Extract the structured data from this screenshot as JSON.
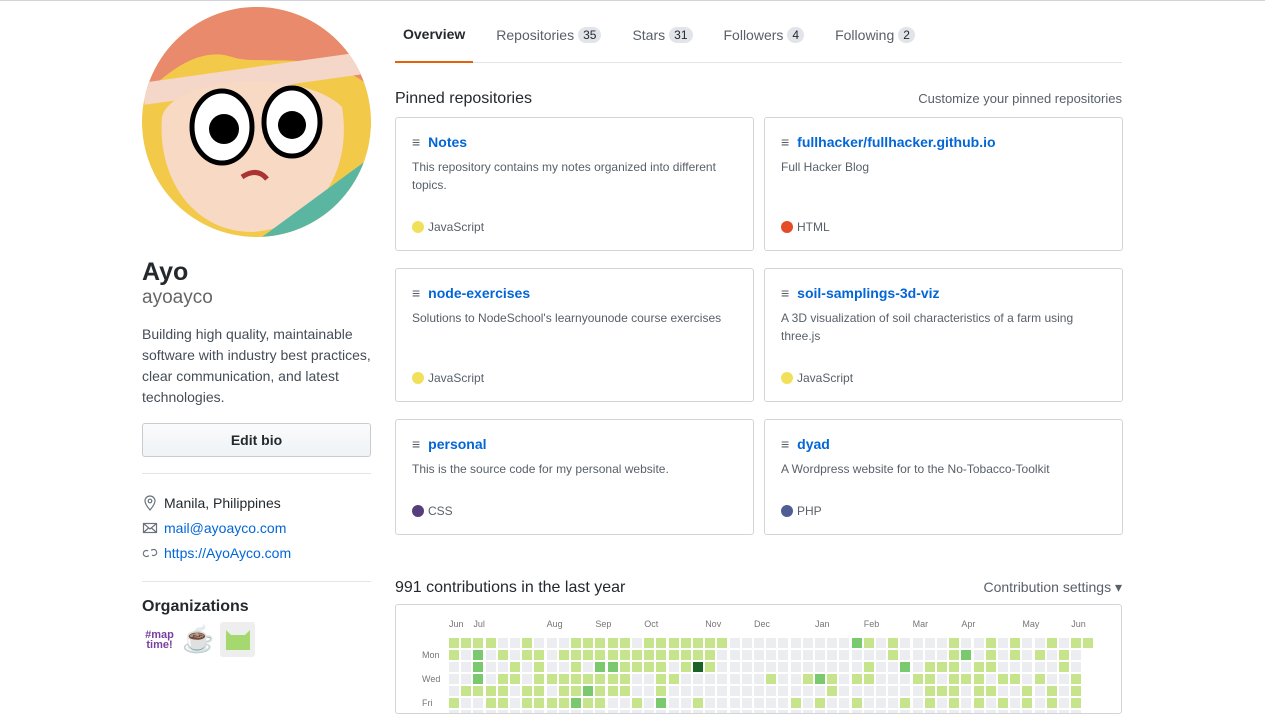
{
  "profile": {
    "name": "Ayo",
    "login": "ayoayco",
    "bio": "Building high quality, maintainable software with industry best practices, clear communication, and latest technologies.",
    "edit_bio": "Edit bio",
    "location": "Manila, Philippines",
    "email": "mail@ayoayco.com",
    "website": "https://AyoAyco.com",
    "organizations_title": "Organizations",
    "organizations": [
      {
        "name": "maptime",
        "icon": "maptime-logo"
      },
      {
        "name": "coffee",
        "icon": "coffee-cup-icon"
      },
      {
        "name": "pixel",
        "icon": "green-pixel-logo"
      }
    ]
  },
  "tabs": [
    {
      "label": "Overview",
      "selected": true
    },
    {
      "label": "Repositories",
      "count": "35"
    },
    {
      "label": "Stars",
      "count": "31"
    },
    {
      "label": "Followers",
      "count": "4"
    },
    {
      "label": "Following",
      "count": "2"
    }
  ],
  "pinned": {
    "title": "Pinned repositories",
    "customize": "Customize your pinned repositories",
    "repos": [
      {
        "name": "Notes",
        "desc": "This repository contains my notes organized into different topics.",
        "lang": "JavaScript",
        "color": "#f1e05a"
      },
      {
        "name": "fullhacker/fullhacker.github.io",
        "desc": "Full Hacker Blog",
        "lang": "HTML",
        "color": "#e34c26"
      },
      {
        "name": "node-exercises",
        "desc": "Solutions to NodeSchool's learnyounode course exercises",
        "lang": "JavaScript",
        "color": "#f1e05a"
      },
      {
        "name": "soil-samplings-3d-viz",
        "desc": "A 3D visualization of soil characteristics of a farm using three.js",
        "lang": "JavaScript",
        "color": "#f1e05a"
      },
      {
        "name": "personal",
        "desc": "This is the source code for my personal website.",
        "lang": "CSS",
        "color": "#563d7c"
      },
      {
        "name": "dyad",
        "desc": "A Wordpress website for to the No-Tobacco-Toolkit",
        "lang": "PHP",
        "color": "#4F5D95"
      }
    ]
  },
  "contributions": {
    "title": "991 contributions in the last year",
    "settings": "Contribution settings ▾",
    "months": [
      "Jun",
      "Jul",
      "Aug",
      "Sep",
      "Oct",
      "Nov",
      "Dec",
      "Jan",
      "Feb",
      "Mar",
      "Apr",
      "May",
      "Jun"
    ],
    "month_weeks": [
      0,
      2,
      8,
      12,
      16,
      21,
      25,
      30,
      34,
      38,
      42,
      47,
      51
    ],
    "weekdays": [
      "Mon",
      "Wed",
      "Fri"
    ],
    "colors": [
      "#ebedf0",
      "#c6e48b",
      "#7bc96f",
      "#239a3b",
      "#196127"
    ],
    "rows": [
      "11110010001111101111111000000000021010000100101001011110011",
      "10201011011111111111110000000000000010000120101010101010",
      "00200101001022111101410000000000001002011101100000100000",
      "00201101111111100110000000100121011000110111011010011000",
      "01111011011211100100000000000001000000011101100101011010",
      "10011011112110010200100000001010010001010101010101011010"
    ]
  }
}
